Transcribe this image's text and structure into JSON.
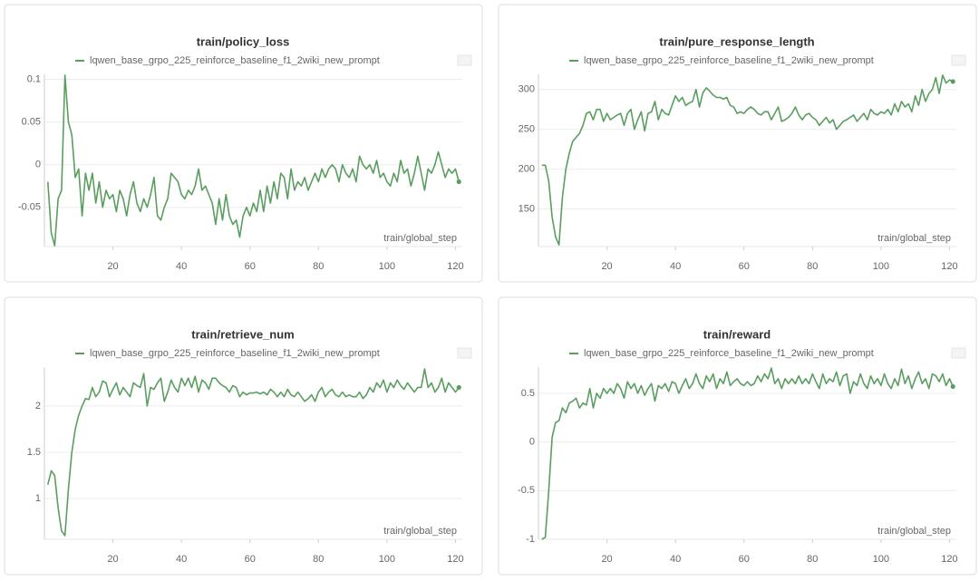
{
  "chart_data": [
    {
      "type": "line",
      "title": "train/policy_loss",
      "xlabel": "train/global_step",
      "x": [
        1,
        2,
        3,
        4,
        5,
        6,
        7,
        8,
        9,
        10,
        11,
        12,
        13,
        14,
        15,
        16,
        17,
        18,
        19,
        20,
        21,
        22,
        23,
        24,
        25,
        26,
        27,
        28,
        29,
        30,
        31,
        32,
        33,
        34,
        35,
        36,
        37,
        38,
        39,
        40,
        41,
        42,
        43,
        44,
        45,
        46,
        47,
        48,
        49,
        50,
        51,
        52,
        53,
        54,
        55,
        56,
        57,
        58,
        59,
        60,
        61,
        62,
        63,
        64,
        65,
        66,
        67,
        68,
        69,
        70,
        71,
        72,
        73,
        74,
        75,
        76,
        77,
        78,
        79,
        80,
        81,
        82,
        83,
        84,
        85,
        86,
        87,
        88,
        89,
        90,
        91,
        92,
        93,
        94,
        95,
        96,
        97,
        98,
        99,
        100,
        101,
        102,
        103,
        104,
        105,
        106,
        107,
        108,
        109,
        110,
        111,
        112,
        113,
        114,
        115,
        116,
        117,
        118,
        119,
        120,
        121
      ],
      "series": [
        {
          "name": "lqwen_base_grpo_225_reinforce_baseline_f1_2wiki_new_prompt",
          "color": "#5a9e5f",
          "values": [
            -0.02,
            -0.08,
            -0.095,
            -0.04,
            -0.03,
            0.105,
            0.05,
            0.035,
            -0.015,
            -0.005,
            -0.06,
            -0.01,
            -0.03,
            -0.01,
            -0.045,
            -0.02,
            -0.05,
            -0.03,
            -0.04,
            -0.035,
            -0.055,
            -0.03,
            -0.04,
            -0.06,
            -0.035,
            -0.02,
            -0.045,
            -0.055,
            -0.04,
            -0.05,
            -0.035,
            -0.015,
            -0.06,
            -0.065,
            -0.05,
            -0.04,
            -0.01,
            -0.015,
            -0.02,
            -0.035,
            -0.04,
            -0.03,
            -0.035,
            -0.025,
            -0.005,
            -0.03,
            -0.025,
            -0.035,
            -0.045,
            -0.07,
            -0.04,
            -0.065,
            -0.035,
            -0.06,
            -0.07,
            -0.065,
            -0.085,
            -0.06,
            -0.05,
            -0.06,
            -0.045,
            -0.055,
            -0.03,
            -0.055,
            -0.025,
            -0.045,
            -0.02,
            -0.04,
            -0.01,
            -0.015,
            -0.04,
            -0.005,
            -0.03,
            -0.02,
            -0.025,
            -0.015,
            -0.03,
            -0.02,
            -0.01,
            -0.02,
            -0.005,
            -0.015,
            -0.005,
            0,
            -0.005,
            -0.02,
            0,
            -0.01,
            -0.015,
            -0.005,
            -0.02,
            0.01,
            0,
            -0.005,
            0,
            -0.01,
            0.005,
            -0.015,
            -0.01,
            -0.02,
            -0.025,
            -0.01,
            -0.02,
            0.005,
            -0.01,
            -0.005,
            -0.025,
            -0.01,
            0.01,
            -0.01,
            -0.03,
            -0.005,
            -0.01,
            0,
            0.015,
            0,
            -0.015,
            -0.005,
            -0.01,
            -0.005,
            -0.02
          ]
        }
      ],
      "xlim": [
        0,
        122
      ],
      "xticks": [
        20,
        40,
        60,
        80,
        100,
        120
      ],
      "ylim": [
        -0.096,
        0.106
      ],
      "yticks": [
        0.1,
        0.05,
        0,
        -0.05
      ],
      "grid": true
    },
    {
      "type": "line",
      "title": "train/pure_response_length",
      "xlabel": "train/global_step",
      "x": [
        1,
        2,
        3,
        4,
        5,
        6,
        7,
        8,
        9,
        10,
        11,
        12,
        13,
        14,
        15,
        16,
        17,
        18,
        19,
        20,
        21,
        22,
        23,
        24,
        25,
        26,
        27,
        28,
        29,
        30,
        31,
        32,
        33,
        34,
        35,
        36,
        37,
        38,
        39,
        40,
        41,
        42,
        43,
        44,
        45,
        46,
        47,
        48,
        49,
        50,
        51,
        52,
        53,
        54,
        55,
        56,
        57,
        58,
        59,
        60,
        61,
        62,
        63,
        64,
        65,
        66,
        67,
        68,
        69,
        70,
        71,
        72,
        73,
        74,
        75,
        76,
        77,
        78,
        79,
        80,
        81,
        82,
        83,
        84,
        85,
        86,
        87,
        88,
        89,
        90,
        91,
        92,
        93,
        94,
        95,
        96,
        97,
        98,
        99,
        100,
        101,
        102,
        103,
        104,
        105,
        106,
        107,
        108,
        109,
        110,
        111,
        112,
        113,
        114,
        115,
        116,
        117,
        118,
        119,
        120,
        121
      ],
      "series": [
        {
          "name": "lqwen_base_grpo_225_reinforce_baseline_f1_2wiki_new_prompt",
          "color": "#5a9e5f",
          "values": [
            205,
            205,
            185,
            140,
            115,
            105,
            165,
            200,
            220,
            235,
            240,
            245,
            255,
            270,
            272,
            262,
            275,
            275,
            260,
            270,
            262,
            265,
            268,
            270,
            255,
            270,
            275,
            250,
            262,
            272,
            248,
            270,
            272,
            285,
            262,
            275,
            270,
            268,
            280,
            292,
            285,
            290,
            280,
            283,
            285,
            300,
            278,
            296,
            302,
            298,
            293,
            290,
            290,
            288,
            290,
            280,
            278,
            270,
            272,
            270,
            275,
            278,
            275,
            270,
            268,
            272,
            272,
            262,
            270,
            278,
            260,
            262,
            265,
            270,
            278,
            268,
            262,
            268,
            270,
            265,
            262,
            255,
            260,
            265,
            258,
            262,
            250,
            255,
            260,
            262,
            265,
            268,
            260,
            265,
            270,
            262,
            275,
            270,
            268,
            272,
            270,
            275,
            268,
            282,
            272,
            285,
            278,
            282,
            272,
            292,
            280,
            300,
            285,
            295,
            300,
            315,
            295,
            318,
            308,
            312,
            310
          ]
        }
      ],
      "xlim": [
        0,
        122
      ],
      "xticks": [
        20,
        40,
        60,
        80,
        100,
        120
      ],
      "ylim": [
        103,
        319
      ],
      "yticks": [
        300,
        250,
        200,
        150
      ],
      "grid": true
    },
    {
      "type": "line",
      "title": "train/retrieve_num",
      "xlabel": "train/global_step",
      "x": [
        1,
        2,
        3,
        4,
        5,
        6,
        7,
        8,
        9,
        10,
        11,
        12,
        13,
        14,
        15,
        16,
        17,
        18,
        19,
        20,
        21,
        22,
        23,
        24,
        25,
        26,
        27,
        28,
        29,
        30,
        31,
        32,
        33,
        34,
        35,
        36,
        37,
        38,
        39,
        40,
        41,
        42,
        43,
        44,
        45,
        46,
        47,
        48,
        49,
        50,
        51,
        52,
        53,
        54,
        55,
        56,
        57,
        58,
        59,
        60,
        61,
        62,
        63,
        64,
        65,
        66,
        67,
        68,
        69,
        70,
        71,
        72,
        73,
        74,
        75,
        76,
        77,
        78,
        79,
        80,
        81,
        82,
        83,
        84,
        85,
        86,
        87,
        88,
        89,
        90,
        91,
        92,
        93,
        94,
        95,
        96,
        97,
        98,
        99,
        100,
        101,
        102,
        103,
        104,
        105,
        106,
        107,
        108,
        109,
        110,
        111,
        112,
        113,
        114,
        115,
        116,
        117,
        118,
        119,
        120,
        121
      ],
      "series": [
        {
          "name": "lqwen_base_grpo_225_reinforce_baseline_f1_2wiki_new_prompt",
          "color": "#5a9e5f",
          "values": [
            1.15,
            1.3,
            1.25,
            0.9,
            0.65,
            0.6,
            1.1,
            1.5,
            1.75,
            1.9,
            2.0,
            2.08,
            2.07,
            2.2,
            2.1,
            2.15,
            2.27,
            2.25,
            2.1,
            2.18,
            2.25,
            2.12,
            2.2,
            2.15,
            2.1,
            2.25,
            2.22,
            2.2,
            2.35,
            2.0,
            2.2,
            2.18,
            2.25,
            2.3,
            2.05,
            2.15,
            2.28,
            2.2,
            2.15,
            2.3,
            2.22,
            2.3,
            2.2,
            2.32,
            2.15,
            2.28,
            2.25,
            2.18,
            2.3,
            2.3,
            2.25,
            2.22,
            2.2,
            2.15,
            2.22,
            2.2,
            2.1,
            2.15,
            2.12,
            2.14,
            2.14,
            2.15,
            2.13,
            2.15,
            2.12,
            2.18,
            2.15,
            2.1,
            2.15,
            2.1,
            2.18,
            2.12,
            2.1,
            2.15,
            2.1,
            2.05,
            2.08,
            2.12,
            2.05,
            2.15,
            2.2,
            2.1,
            2.15,
            2.18,
            2.12,
            2.1,
            2.15,
            2.1,
            2.12,
            2.1,
            2.1,
            2.15,
            2.08,
            2.12,
            2.2,
            2.15,
            2.25,
            2.2,
            2.28,
            2.15,
            2.25,
            2.2,
            2.28,
            2.22,
            2.18,
            2.25,
            2.2,
            2.15,
            2.2,
            2.2,
            2.4,
            2.2,
            2.25,
            2.15,
            2.2,
            2.3,
            2.15,
            2.25,
            2.2,
            2.15,
            2.2
          ]
        }
      ],
      "xlim": [
        0,
        122
      ],
      "xticks": [
        20,
        40,
        60,
        80,
        100,
        120
      ],
      "ylim": [
        0.56,
        2.42
      ],
      "yticks": [
        2,
        1.5,
        1
      ],
      "grid": true
    },
    {
      "type": "line",
      "title": "train/reward",
      "xlabel": "train/global_step",
      "x": [
        1,
        2,
        3,
        4,
        5,
        6,
        7,
        8,
        9,
        10,
        11,
        12,
        13,
        14,
        15,
        16,
        17,
        18,
        19,
        20,
        21,
        22,
        23,
        24,
        25,
        26,
        27,
        28,
        29,
        30,
        31,
        32,
        33,
        34,
        35,
        36,
        37,
        38,
        39,
        40,
        41,
        42,
        43,
        44,
        45,
        46,
        47,
        48,
        49,
        50,
        51,
        52,
        53,
        54,
        55,
        56,
        57,
        58,
        59,
        60,
        61,
        62,
        63,
        64,
        65,
        66,
        67,
        68,
        69,
        70,
        71,
        72,
        73,
        74,
        75,
        76,
        77,
        78,
        79,
        80,
        81,
        82,
        83,
        84,
        85,
        86,
        87,
        88,
        89,
        90,
        91,
        92,
        93,
        94,
        95,
        96,
        97,
        98,
        99,
        100,
        101,
        102,
        103,
        104,
        105,
        106,
        107,
        108,
        109,
        110,
        111,
        112,
        113,
        114,
        115,
        116,
        117,
        118,
        119,
        120,
        121
      ],
      "series": [
        {
          "name": "lqwen_base_grpo_225_reinforce_baseline_f1_2wiki_new_prompt",
          "color": "#5a9e5f",
          "values": [
            -1,
            -0.98,
            -0.5,
            0.05,
            0.2,
            0.22,
            0.35,
            0.3,
            0.4,
            0.42,
            0.45,
            0.35,
            0.4,
            0.38,
            0.55,
            0.35,
            0.5,
            0.45,
            0.55,
            0.5,
            0.55,
            0.5,
            0.6,
            0.55,
            0.45,
            0.62,
            0.55,
            0.6,
            0.5,
            0.58,
            0.48,
            0.55,
            0.6,
            0.42,
            0.58,
            0.55,
            0.6,
            0.52,
            0.62,
            0.6,
            0.5,
            0.58,
            0.65,
            0.55,
            0.6,
            0.7,
            0.6,
            0.55,
            0.68,
            0.62,
            0.7,
            0.55,
            0.65,
            0.6,
            0.72,
            0.58,
            0.62,
            0.65,
            0.6,
            0.58,
            0.62,
            0.58,
            0.6,
            0.68,
            0.62,
            0.7,
            0.65,
            0.76,
            0.6,
            0.65,
            0.55,
            0.65,
            0.6,
            0.65,
            0.6,
            0.68,
            0.6,
            0.65,
            0.6,
            0.7,
            0.62,
            0.55,
            0.7,
            0.6,
            0.65,
            0.62,
            0.72,
            0.58,
            0.68,
            0.7,
            0.5,
            0.62,
            0.58,
            0.7,
            0.6,
            0.55,
            0.68,
            0.6,
            0.65,
            0.58,
            0.7,
            0.6,
            0.55,
            0.65,
            0.58,
            0.75,
            0.6,
            0.68,
            0.55,
            0.65,
            0.72,
            0.6,
            0.65,
            0.55,
            0.7,
            0.68,
            0.62,
            0.7,
            0.58,
            0.65,
            0.57
          ]
        }
      ],
      "xlim": [
        0,
        122
      ],
      "xticks": [
        20,
        40,
        60,
        80,
        100,
        120
      ],
      "ylim": [
        -1,
        0.77
      ],
      "yticks": [
        0.5,
        0,
        -0.5,
        -1
      ],
      "grid": true
    }
  ]
}
